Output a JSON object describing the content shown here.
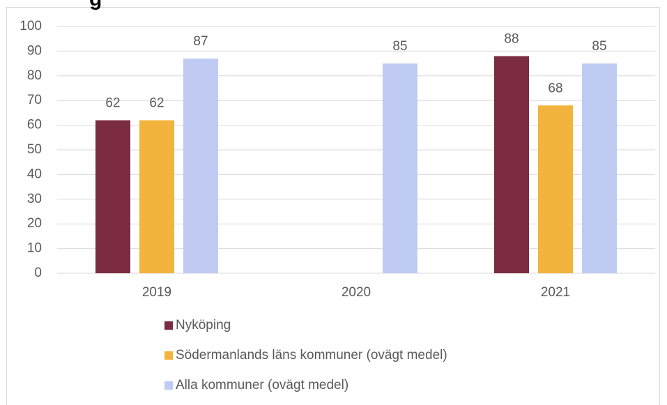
{
  "chart_data": {
    "type": "bar",
    "title": "g",
    "categories": [
      "2019",
      "2020",
      "2021"
    ],
    "series": [
      {
        "name": "Nyköping",
        "color": "#7b2c41",
        "values": [
          62,
          null,
          88
        ]
      },
      {
        "name": "Södermanlands läns kommuner (ovägt medel)",
        "color": "#f2b43c",
        "values": [
          62,
          null,
          68
        ]
      },
      {
        "name": "Alla kommuner (ovägt medel)",
        "color": "#bfcbf3",
        "values": [
          87,
          85,
          85
        ]
      }
    ],
    "ylim": [
      0,
      100
    ],
    "yticks": [
      0,
      10,
      20,
      30,
      40,
      50,
      60,
      70,
      80,
      90,
      100
    ],
    "grid": true,
    "legend": "bottom"
  }
}
